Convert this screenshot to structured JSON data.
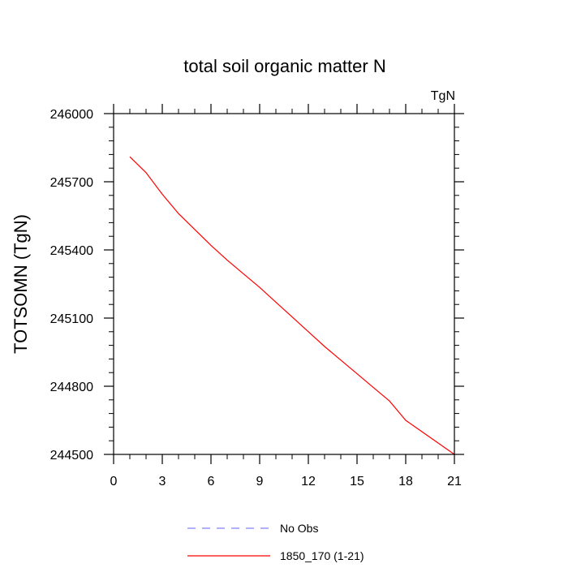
{
  "chart_data": {
    "type": "line",
    "title": "total soil organic matter N",
    "units_label": "TgN",
    "xlabel": "",
    "ylabel": "TOTSOMN  (TgN)",
    "xlim": [
      0,
      21
    ],
    "ylim": [
      244500,
      246000
    ],
    "x_ticks": [
      0,
      3,
      6,
      9,
      12,
      15,
      18,
      21
    ],
    "y_ticks": [
      244500,
      244800,
      245100,
      245400,
      245700,
      246000
    ],
    "x_tick_labels": [
      "0",
      "3",
      "6",
      "9",
      "12",
      "15",
      "18",
      "21"
    ],
    "y_tick_labels": [
      "244500",
      "244800",
      "245100",
      "245400",
      "245700",
      "246000"
    ],
    "grid": false,
    "legend_position": "bottom",
    "series": [
      {
        "name": "No Obs",
        "color": "#8080ff",
        "style": "dashed",
        "x": [],
        "y": []
      },
      {
        "name": "1850_170 (1-21)",
        "color": "#ff0000",
        "style": "solid",
        "x": [
          1,
          2,
          3,
          4,
          5,
          6,
          7,
          8,
          9,
          10,
          11,
          12,
          13,
          14,
          15,
          16,
          17,
          18,
          19,
          20,
          21
        ],
        "y": [
          245810,
          245740,
          245645,
          245560,
          245490,
          245420,
          245355,
          245295,
          245235,
          245170,
          245105,
          245040,
          244975,
          244915,
          244855,
          244795,
          244735,
          244650,
          244600,
          244550,
          244500
        ]
      }
    ]
  }
}
